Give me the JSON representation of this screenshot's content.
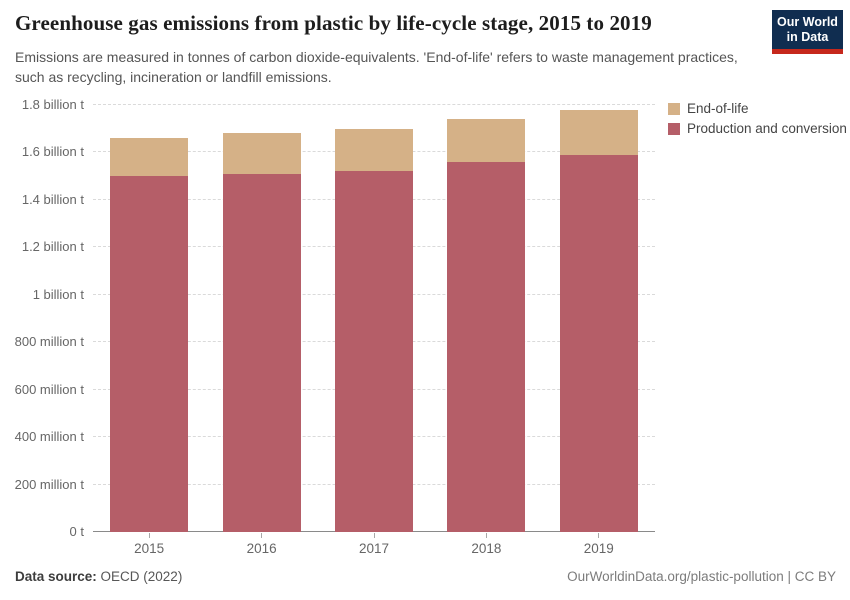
{
  "header": {
    "title": "Greenhouse gas emissions from plastic by life-cycle stage, 2015 to 2019",
    "subtitle": "Emissions are measured in tonnes of carbon dioxide-equivalents. 'End-of-life' refers to waste management practices, such as recycling, incineration or landfill emissions."
  },
  "logo": {
    "line1": "Our World",
    "line2": "in Data",
    "bg_color": "#102d50",
    "accent_color": "#c6281c"
  },
  "chart_data": {
    "type": "bar",
    "stacked": true,
    "title": "Greenhouse gas emissions from plastic by life-cycle stage, 2015 to 2019",
    "unit": "tonnes of carbon dioxide-equivalents",
    "categories": [
      "2015",
      "2016",
      "2017",
      "2018",
      "2019"
    ],
    "series": [
      {
        "name": "Production and conversion",
        "color": "#b55e68",
        "values_billion_t": [
          1.5,
          1.51,
          1.52,
          1.56,
          1.59
        ]
      },
      {
        "name": "End-of-life",
        "color": "#d5b187",
        "values_billion_t": [
          0.16,
          0.17,
          0.18,
          0.18,
          0.19
        ]
      }
    ],
    "totals_billion_t": [
      1.66,
      1.68,
      1.7,
      1.74,
      1.78
    ],
    "ylim_billion_t": [
      0,
      1.8
    ],
    "y_ticks": [
      {
        "value": 0,
        "label": "0 t"
      },
      {
        "value": 0.2,
        "label": "200 million t"
      },
      {
        "value": 0.4,
        "label": "400 million t"
      },
      {
        "value": 0.6,
        "label": "600 million t"
      },
      {
        "value": 0.8,
        "label": "800 million t"
      },
      {
        "value": 1,
        "label": "1 billion t"
      },
      {
        "value": 1.2,
        "label": "1.2 billion t"
      },
      {
        "value": 1.4,
        "label": "1.4 billion t"
      },
      {
        "value": 1.6,
        "label": "1.6 billion t"
      },
      {
        "value": 1.8,
        "label": "1.8 billion t"
      }
    ],
    "grid": "horizontal dashed",
    "legend_position": "top-right",
    "legend_order": [
      "End-of-life",
      "Production and conversion"
    ]
  },
  "footer": {
    "source_label": "Data source:",
    "source_value": " OECD (2022)",
    "attribution": "OurWorldinData.org/plastic-pollution | CC BY"
  }
}
